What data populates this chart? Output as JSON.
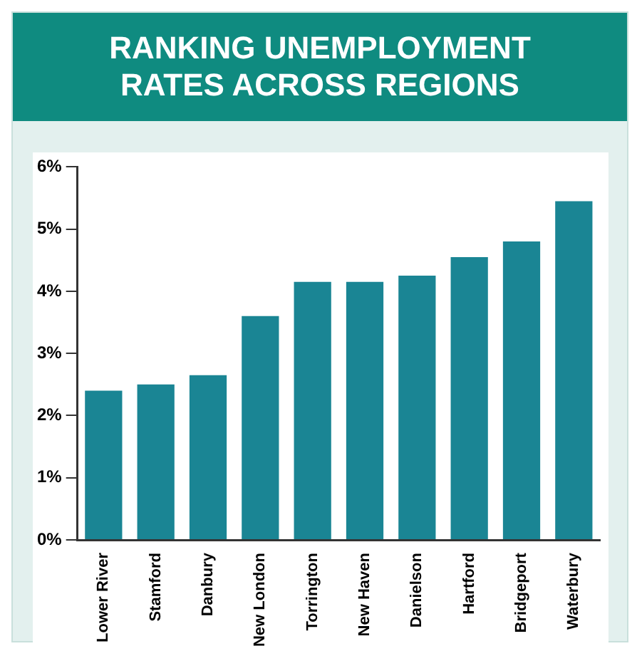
{
  "chart_data": {
    "type": "bar",
    "title": "RANKING UNEMPLOYMENT RATES ACROSS REGIONS",
    "categories": [
      "Lower River",
      "Stamford",
      "Danbury",
      "New London",
      "Torrington",
      "New Haven",
      "Danielson",
      "Hartford",
      "Bridgeport",
      "Waterbury"
    ],
    "values": [
      2.4,
      2.5,
      2.65,
      3.6,
      4.15,
      4.15,
      4.25,
      4.55,
      4.8,
      5.45
    ],
    "color": "#1a8594",
    "ylim": [
      0,
      6
    ],
    "yticks": [
      {
        "value": 0,
        "label": "0%"
      },
      {
        "value": 1,
        "label": "1%"
      },
      {
        "value": 2,
        "label": "2%"
      },
      {
        "value": 3,
        "label": "3%"
      },
      {
        "value": 4,
        "label": "4%"
      },
      {
        "value": 5,
        "label": "5%"
      },
      {
        "value": 6,
        "label": "6%"
      }
    ],
    "grid": false,
    "legend": false
  }
}
